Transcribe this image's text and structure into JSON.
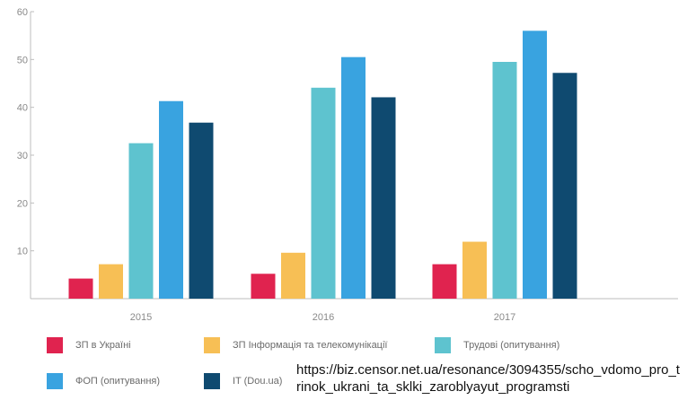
{
  "chart_data": {
    "type": "bar",
    "categories": [
      "2015",
      "2016",
      "2017"
    ],
    "series": [
      {
        "name": "ЗП в Україні",
        "color": "#e0234f",
        "values": [
          4.2,
          5.2,
          7.2
        ]
      },
      {
        "name": "ЗП Інформація та телекомунікації",
        "color": "#f7bf55",
        "values": [
          7.2,
          9.6,
          11.9
        ]
      },
      {
        "name": "Трудові (опитування)",
        "color": "#5ec3cf",
        "values": [
          32.5,
          44.1,
          49.5
        ]
      },
      {
        "name": "ФОП (опитування)",
        "color": "#39a3e0",
        "values": [
          41.3,
          50.5,
          56.0
        ]
      },
      {
        "name": "IT (Dou.ua)",
        "color": "#0f4a70",
        "values": [
          36.8,
          42.1,
          47.2
        ]
      }
    ],
    "title": "",
    "xlabel": "",
    "ylabel": "",
    "ylim": [
      0,
      60
    ],
    "yticks": [
      "10",
      "20",
      "30",
      "40",
      "50",
      "60"
    ],
    "grid": false,
    "legend": "bottom"
  },
  "source_text": "https://biz.censor.net.ua/resonance/3094355/scho_vdomo_pro_trinok_ukrani_ta_sklki_zaroblyayut_programsti"
}
